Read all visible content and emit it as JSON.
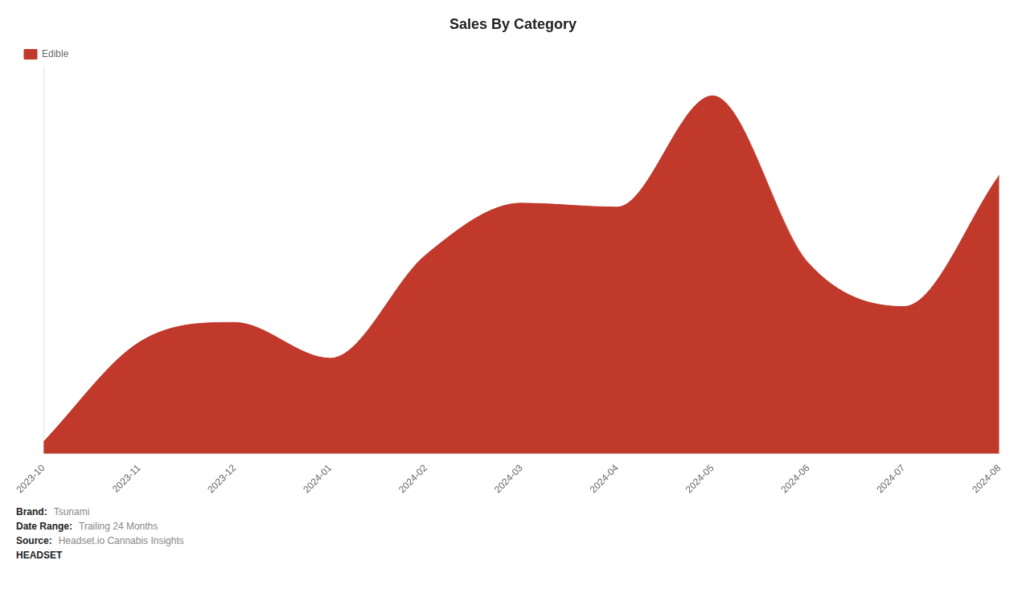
{
  "chart_data": {
    "type": "area",
    "title": "Sales By Category",
    "categories": [
      "2023-10",
      "2023-11",
      "2023-12",
      "2024-01",
      "2024-02",
      "2024-03",
      "2024-04",
      "2024-05",
      "2024-06",
      "2024-07",
      "2024-08"
    ],
    "series": [
      {
        "name": "Edible",
        "color": "#c0392b",
        "values": [
          0.03,
          0.28,
          0.33,
          0.24,
          0.5,
          0.63,
          0.62,
          0.9,
          0.48,
          0.37,
          0.7
        ]
      }
    ],
    "ylim": [
      0,
      0.972
    ],
    "tick_labels": "x",
    "grid": false,
    "legend": "upper left",
    "annotations": [
      [
        "Brand:",
        "Tsunami"
      ],
      [
        "Date Range:",
        "Trailing 24 Months"
      ],
      [
        "Source:",
        "Headset.io Cannabis Insights"
      ],
      [
        "HEADSET"
      ]
    ]
  }
}
